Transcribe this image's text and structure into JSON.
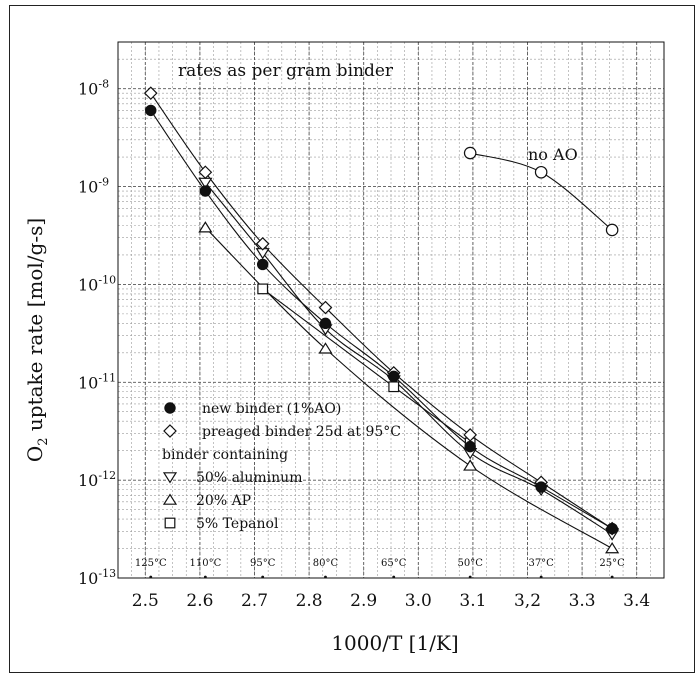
{
  "chart_data": {
    "type": "scatter",
    "title": "",
    "inner_title": "rates as per gram binder",
    "xlabel": "1000/T [1/K]",
    "ylabel": "O",
    "ylabel_sub": "2",
    "ylabel_rest": " uptake rate [mol/g-s]",
    "x_scale": "linear",
    "y_scale": "log",
    "xlim": [
      2.45,
      3.45
    ],
    "ylim": [
      1e-13,
      3e-08
    ],
    "grid": true,
    "x_ticks": [
      {
        "value": 2.5,
        "label": "2.5"
      },
      {
        "value": 2.6,
        "label": "2.6"
      },
      {
        "value": 2.7,
        "label": "2.7"
      },
      {
        "value": 2.8,
        "label": "2.8"
      },
      {
        "value": 2.9,
        "label": "2.9"
      },
      {
        "value": 3.0,
        "label": "3.0"
      },
      {
        "value": 3.1,
        "label": "3.1"
      },
      {
        "value": 3.2,
        "label": "3,2"
      },
      {
        "value": 3.3,
        "label": "3.3"
      },
      {
        "value": 3.4,
        "label": "3.4"
      }
    ],
    "y_ticks": [
      {
        "value": 1e-08,
        "base": "10",
        "exp": "-8"
      },
      {
        "value": 1e-09,
        "base": "10",
        "exp": "-9"
      },
      {
        "value": 1e-10,
        "base": "10",
        "exp": "-10"
      },
      {
        "value": 1e-11,
        "base": "10",
        "exp": "-11"
      },
      {
        "value": 1e-12,
        "base": "10",
        "exp": "-12"
      },
      {
        "value": 1e-13,
        "base": "10",
        "exp": "-13"
      }
    ],
    "temperature_labels": [
      {
        "x": 2.51,
        "label": "125°C"
      },
      {
        "x": 2.61,
        "label": "110°C"
      },
      {
        "x": 2.715,
        "label": "95°C"
      },
      {
        "x": 2.83,
        "label": "80°C"
      },
      {
        "x": 2.955,
        "label": "65°C"
      },
      {
        "x": 3.095,
        "label": "50°C"
      },
      {
        "x": 3.225,
        "label": "37°C"
      },
      {
        "x": 3.355,
        "label": "25°C"
      }
    ],
    "legend": {
      "placement": "lower-left",
      "entries": [
        {
          "marker": "filled-circle",
          "label": "new binder (1%AO)"
        },
        {
          "marker": "diamond",
          "label": "preaged binder 25d at 95°C"
        },
        {
          "marker": "none",
          "label": "binder containing"
        },
        {
          "marker": "triangle-down",
          "label": "50% aluminum"
        },
        {
          "marker": "triangle-up",
          "label": "20% AP"
        },
        {
          "marker": "square",
          "label": "5% Tepanol"
        }
      ]
    },
    "annotation": "no AO",
    "series": [
      {
        "name": "new binder (1%AO)",
        "marker": "filled-circle",
        "x": [
          2.51,
          2.61,
          2.715,
          2.83,
          2.955,
          3.095,
          3.225,
          3.355
        ],
        "y": [
          6e-09,
          9e-10,
          1.6e-10,
          4e-11,
          1.15e-11,
          2.2e-12,
          8.5e-13,
          3.2e-13
        ]
      },
      {
        "name": "preaged binder 25d at 95°C",
        "marker": "diamond",
        "x": [
          2.51,
          2.61,
          2.715,
          2.83,
          2.955,
          3.095,
          3.225,
          3.355
        ],
        "y": [
          9e-09,
          1.4e-09,
          2.6e-10,
          5.8e-11,
          1.25e-11,
          2.9e-12,
          9.5e-13,
          3.2e-13
        ]
      },
      {
        "name": "50% aluminum",
        "marker": "triangle-down",
        "x": [
          2.61,
          2.715,
          2.83,
          2.955,
          3.095,
          3.225,
          3.355
        ],
        "y": [
          1.1e-09,
          2.1e-10,
          3.5e-11,
          1.05e-11,
          1.9e-12,
          8e-13,
          2.8e-13
        ]
      },
      {
        "name": "20% AP",
        "marker": "triangle-up",
        "x": [
          2.61,
          2.83,
          3.095,
          3.355
        ],
        "y": [
          3.8e-10,
          2.2e-11,
          1.4e-12,
          2e-13
        ]
      },
      {
        "name": "5% Tepanol",
        "marker": "square",
        "x": [
          2.715,
          2.955,
          3.095
        ],
        "y": [
          9e-11,
          9e-12,
          2.4e-12
        ]
      },
      {
        "name": "no AO",
        "marker": "open-circle",
        "x": [
          3.095,
          3.225,
          3.355
        ],
        "y": [
          2.2e-09,
          1.4e-09,
          3.6e-10
        ]
      }
    ]
  }
}
